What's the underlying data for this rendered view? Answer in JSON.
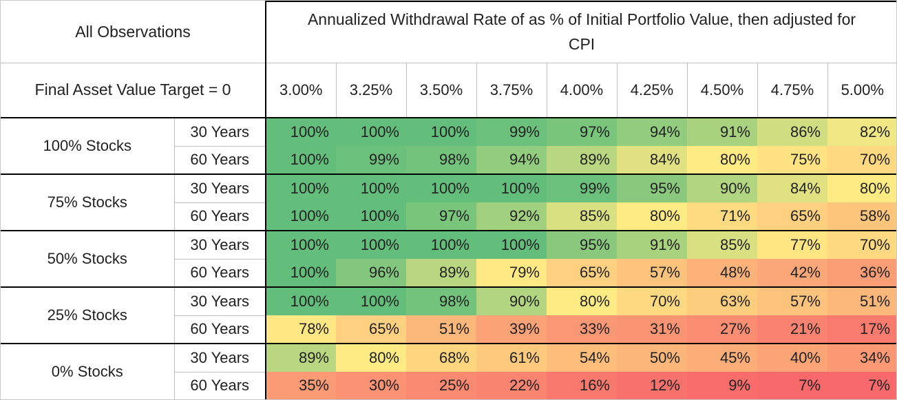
{
  "chart_data": {
    "type": "heatmap",
    "title": "Annualized Withdrawal Rate of as % of Initial Portfolio Value, then adjusted for CPI",
    "corner_label": "All Observations",
    "row_axis_label": "Final Asset Value Target = 0",
    "columns": [
      "3.00%",
      "3.25%",
      "3.50%",
      "3.75%",
      "4.00%",
      "4.25%",
      "4.50%",
      "4.75%",
      "5.00%"
    ],
    "value_suffix": "%",
    "groups": [
      {
        "label": "100% Stocks",
        "rows": [
          {
            "label": "30 Years",
            "values": [
              100,
              100,
              100,
              99,
              97,
              94,
              91,
              86,
              82
            ]
          },
          {
            "label": "60 Years",
            "values": [
              100,
              99,
              98,
              94,
              89,
              84,
              80,
              75,
              70
            ]
          }
        ]
      },
      {
        "label": "75% Stocks",
        "rows": [
          {
            "label": "30 Years",
            "values": [
              100,
              100,
              100,
              100,
              99,
              95,
              90,
              84,
              80
            ]
          },
          {
            "label": "60 Years",
            "values": [
              100,
              100,
              97,
              92,
              85,
              80,
              71,
              65,
              58
            ]
          }
        ]
      },
      {
        "label": "50% Stocks",
        "rows": [
          {
            "label": "30 Years",
            "values": [
              100,
              100,
              100,
              100,
              95,
              91,
              85,
              77,
              70
            ]
          },
          {
            "label": "60 Years",
            "values": [
              100,
              96,
              89,
              79,
              65,
              57,
              48,
              42,
              36
            ]
          }
        ]
      },
      {
        "label": "25% Stocks",
        "rows": [
          {
            "label": "30 Years",
            "values": [
              100,
              100,
              98,
              90,
              80,
              70,
              63,
              57,
              51
            ]
          },
          {
            "label": "60 Years",
            "values": [
              78,
              65,
              51,
              39,
              33,
              31,
              27,
              21,
              17
            ]
          }
        ]
      },
      {
        "label": "0% Stocks",
        "rows": [
          {
            "label": "30 Years",
            "values": [
              89,
              80,
              68,
              61,
              54,
              50,
              45,
              40,
              34
            ]
          },
          {
            "label": "60 Years",
            "values": [
              35,
              30,
              25,
              22,
              16,
              12,
              9,
              7,
              7
            ]
          }
        ]
      }
    ],
    "colorscale": {
      "type": "3-color",
      "min": {
        "value": 7,
        "color": "#F8696B"
      },
      "mid": {
        "value": 80,
        "color": "#FFEB84"
      },
      "max": {
        "value": 100,
        "color": "#63BE7B"
      }
    }
  },
  "style": {
    "border_black": "#000000",
    "grid_gray": "#BFBFBF",
    "text": "#212121"
  }
}
